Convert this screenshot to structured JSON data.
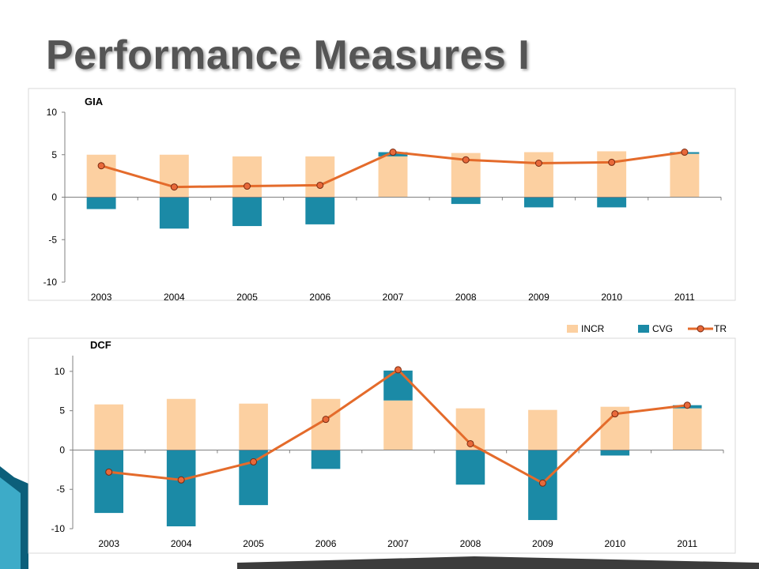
{
  "slide": {
    "title": "Performance Measures I"
  },
  "colors": {
    "INCR": "#fcd0a1",
    "CVG": "#1b8aa6",
    "TR": "#e46b2b",
    "marker_fill": "#e8693a",
    "marker_stroke": "#7a2a10"
  },
  "legend": {
    "position": "top-right",
    "entries": [
      "INCR",
      "CVG",
      "TR"
    ]
  },
  "chart_data": [
    {
      "type": "bar",
      "title": "GIA",
      "stacked": true,
      "categories": [
        "2003",
        "2004",
        "2005",
        "2006",
        "2007",
        "2008",
        "2009",
        "2010",
        "2011"
      ],
      "ylim": [
        -10,
        10
      ],
      "yticks": [
        10,
        5,
        0,
        -5,
        -10
      ],
      "grid": false,
      "series": [
        {
          "name": "INCR",
          "kind": "bar",
          "values": [
            5.0,
            5.0,
            4.8,
            4.8,
            4.8,
            5.2,
            5.3,
            5.4,
            5.1
          ]
        },
        {
          "name": "CVG",
          "kind": "bar",
          "values": [
            -1.4,
            -3.7,
            -3.4,
            -3.2,
            0.5,
            -0.8,
            -1.2,
            -1.2,
            0.2
          ]
        },
        {
          "name": "TR",
          "kind": "line",
          "values": [
            3.7,
            1.2,
            1.3,
            1.4,
            5.3,
            4.4,
            4.0,
            4.1,
            5.3
          ]
        }
      ]
    },
    {
      "type": "bar",
      "title": "DCF",
      "stacked": true,
      "categories": [
        "2003",
        "2004",
        "2005",
        "2006",
        "2007",
        "2008",
        "2009",
        "2010",
        "2011"
      ],
      "ylim": [
        -10,
        12
      ],
      "yticks": [
        10,
        5,
        0,
        -5,
        -10
      ],
      "grid": false,
      "series": [
        {
          "name": "INCR",
          "kind": "bar",
          "values": [
            5.8,
            6.5,
            5.9,
            6.5,
            6.3,
            5.3,
            5.1,
            5.5,
            5.3
          ]
        },
        {
          "name": "CVG",
          "kind": "bar",
          "values": [
            -8.0,
            -9.7,
            -7.0,
            -2.4,
            3.8,
            -4.4,
            -8.9,
            -0.7,
            0.4
          ]
        },
        {
          "name": "TR",
          "kind": "line",
          "values": [
            -2.8,
            -3.8,
            -1.5,
            3.9,
            10.2,
            0.8,
            -4.2,
            4.6,
            5.7
          ]
        }
      ]
    }
  ]
}
